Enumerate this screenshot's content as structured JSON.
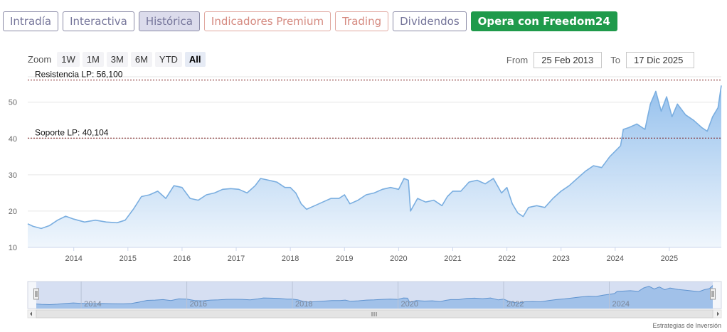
{
  "tabs": [
    {
      "label": "Intradía",
      "style": "normal"
    },
    {
      "label": "Interactiva",
      "style": "normal"
    },
    {
      "label": "Histórica",
      "style": "active"
    },
    {
      "label": "Indicadores Premium",
      "style": "premium"
    },
    {
      "label": "Trading",
      "style": "premium"
    },
    {
      "label": "Dividendos",
      "style": "normal"
    },
    {
      "label": "Opera con Freedom24",
      "style": "cta"
    }
  ],
  "zoom": {
    "label": "Zoom",
    "buttons": [
      "1W",
      "1M",
      "3M",
      "6M",
      "YTD",
      "All"
    ],
    "selected": "All"
  },
  "range": {
    "from_label": "From",
    "from_value": "25 Feb 2013",
    "to_label": "To",
    "to_value": "17 Dic 2025"
  },
  "footnote": "Estrategias de Inversión",
  "colors": {
    "line": "#7aaee0",
    "area_top": "#8fbdec",
    "area_bottom": "#eef5fc",
    "navigator_bg": "#c9d6ee",
    "level_line": "#7a1a1a"
  },
  "chart_data": {
    "type": "area",
    "ylim": [
      10,
      57
    ],
    "yticks": [
      10,
      20,
      30,
      40,
      50
    ],
    "xlim": [
      2013.15,
      2025.96
    ],
    "xticks": [
      "2014",
      "2015",
      "2016",
      "2017",
      "2018",
      "2019",
      "2020",
      "2021",
      "2022",
      "2023",
      "2024",
      "2025"
    ],
    "grid": true,
    "levels": [
      {
        "label": "Resistencia LP: 56,100",
        "value": 56.1
      },
      {
        "label": "Soporte LP: 40,104",
        "value": 40.104
      }
    ],
    "series": [
      {
        "x": [
          2013.15,
          2013.25,
          2013.4,
          2013.55,
          2013.7,
          2013.85,
          2014.0,
          2014.2,
          2014.4,
          2014.6,
          2014.8,
          2014.95,
          2015.1,
          2015.25,
          2015.4,
          2015.55,
          2015.7,
          2015.85,
          2016.0,
          2016.15,
          2016.3,
          2016.45,
          2016.6,
          2016.75,
          2016.9,
          2017.05,
          2017.2,
          2017.35,
          2017.45,
          2017.6,
          2017.75,
          2017.9,
          2018.0,
          2018.1,
          2018.2,
          2018.3,
          2018.45,
          2018.6,
          2018.75,
          2018.9,
          2019.0,
          2019.1,
          2019.25,
          2019.4,
          2019.55,
          2019.7,
          2019.85,
          2020.0,
          2020.1,
          2020.18,
          2020.22,
          2020.35,
          2020.5,
          2020.65,
          2020.8,
          2020.9,
          2021.0,
          2021.15,
          2021.3,
          2021.45,
          2021.6,
          2021.75,
          2021.9,
          2022.0,
          2022.1,
          2022.2,
          2022.3,
          2022.4,
          2022.55,
          2022.7,
          2022.85,
          2023.0,
          2023.15,
          2023.3,
          2023.45,
          2023.6,
          2023.75,
          2023.9,
          2024.0,
          2024.1,
          2024.15,
          2024.25,
          2024.4,
          2024.55,
          2024.65,
          2024.75,
          2024.85,
          2024.95,
          2025.05,
          2025.15,
          2025.3,
          2025.45,
          2025.6,
          2025.7,
          2025.8,
          2025.9,
          2025.96
        ],
        "y": [
          16.5,
          15.8,
          15.2,
          16.0,
          17.5,
          18.6,
          17.8,
          17.0,
          17.5,
          17.0,
          16.8,
          17.5,
          20.5,
          24.0,
          24.5,
          25.5,
          23.5,
          27.0,
          26.5,
          23.5,
          23.0,
          24.5,
          25.0,
          26.0,
          26.2,
          26.0,
          25.0,
          27.0,
          29.0,
          28.5,
          28.0,
          26.5,
          26.5,
          25.0,
          22.0,
          20.5,
          21.5,
          22.5,
          23.5,
          23.5,
          24.5,
          22.0,
          23.0,
          24.5,
          25.0,
          26.0,
          26.5,
          26.0,
          29.0,
          28.5,
          20.0,
          23.5,
          22.5,
          23.0,
          21.5,
          24.0,
          25.5,
          25.5,
          28.0,
          28.5,
          27.5,
          29.0,
          25.0,
          26.5,
          22.0,
          19.5,
          18.5,
          21.0,
          21.5,
          21.0,
          23.5,
          25.5,
          27.0,
          29.0,
          31.0,
          32.5,
          32.0,
          35.0,
          36.5,
          38.0,
          42.5,
          43.0,
          44.0,
          42.5,
          49.5,
          53.0,
          47.5,
          51.5,
          46.0,
          49.5,
          46.5,
          45.0,
          43.0,
          42.0,
          46.0,
          48.5,
          54.6
        ]
      }
    ],
    "navigator_ticks": [
      "2014",
      "2016",
      "2018",
      "2020",
      "2022",
      "2024"
    ]
  }
}
